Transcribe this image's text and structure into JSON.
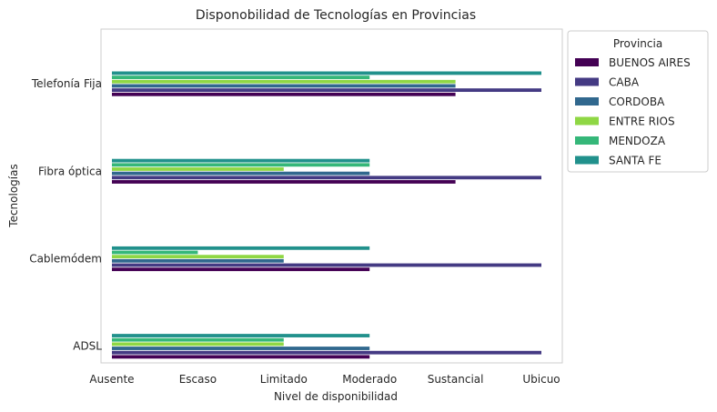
{
  "chart_data": {
    "type": "bar",
    "orientation": "horizontal",
    "title": "Disponobilidad de Tecnologías en Provincias",
    "xlabel": "Nivel de disponibilidad",
    "ylabel": "Tecnologías",
    "x_ticks": [
      "Ausente",
      "Escaso",
      "Limitado",
      "Moderado",
      "Sustancial",
      "Ubicuo"
    ],
    "xlim": [
      0,
      5
    ],
    "categories": [
      "ADSL",
      "Cablemódem",
      "Fibra óptica",
      "Telefonía Fija"
    ],
    "grid": false,
    "legend": {
      "title": "Provincia",
      "placement": "outside-right"
    },
    "series": [
      {
        "name": "BUENOS AIRES",
        "color": "#440154",
        "values": [
          3,
          3,
          4,
          4
        ]
      },
      {
        "name": "CABA",
        "color": "#443a83",
        "values": [
          5,
          5,
          5,
          5
        ]
      },
      {
        "name": "CORDOBA",
        "color": "#31688e",
        "values": [
          3,
          2,
          3,
          4
        ]
      },
      {
        "name": "ENTRE RIOS",
        "color": "#8fd744",
        "values": [
          2,
          2,
          2,
          4
        ]
      },
      {
        "name": "MENDOZA",
        "color": "#35b779",
        "values": [
          2,
          1,
          3,
          3
        ]
      },
      {
        "name": "SANTA FE",
        "color": "#21918c",
        "values": [
          3,
          3,
          3,
          5
        ]
      }
    ]
  }
}
